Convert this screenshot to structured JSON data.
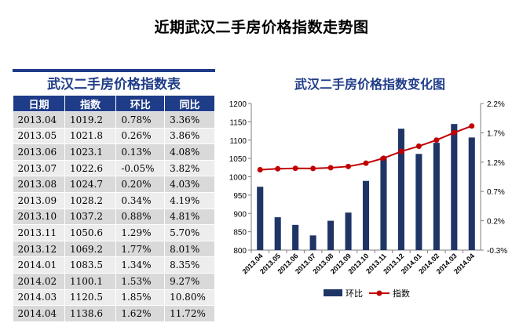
{
  "page": {
    "title": "近期武汉二手房价格指数走势图",
    "table_title": "武汉二手房价格指数表",
    "chart_title": "武汉二手房价格指数变化图"
  },
  "table": {
    "headers": [
      "日期",
      "指数",
      "环比",
      "同比"
    ],
    "rows": [
      [
        "2013.04",
        "1019.2",
        "0.78%",
        "3.36%"
      ],
      [
        "2013.05",
        "1021.8",
        "0.26%",
        "3.86%"
      ],
      [
        "2013.06",
        "1023.1",
        "0.13%",
        "4.08%"
      ],
      [
        "2013.07",
        "1022.6",
        "-0.05%",
        "3.82%"
      ],
      [
        "2013.08",
        "1024.7",
        "0.20%",
        "4.03%"
      ],
      [
        "2013.09",
        "1028.2",
        "0.34%",
        "4.19%"
      ],
      [
        "2013.10",
        "1037.2",
        "0.88%",
        "4.81%"
      ],
      [
        "2013.11",
        "1050.6",
        "1.29%",
        "5.70%"
      ],
      [
        "2013.12",
        "1069.2",
        "1.77%",
        "8.01%"
      ],
      [
        "2014.01",
        "1083.5",
        "1.34%",
        "8.35%"
      ],
      [
        "2014.02",
        "1100.1",
        "1.53%",
        "9.27%"
      ],
      [
        "2014.03",
        "1120.5",
        "1.85%",
        "10.80%"
      ],
      [
        "2014.04",
        "1138.6",
        "1.62%",
        "11.72%"
      ]
    ]
  },
  "chart_data": {
    "type": "bar+line",
    "categories": [
      "2013.04",
      "2013.05",
      "2013.06",
      "2013.07",
      "2013.08",
      "2013.09",
      "2013.10",
      "2013.11",
      "2013.12",
      "2014.01",
      "2014.02",
      "2014.03",
      "2014.04"
    ],
    "series": [
      {
        "name": "环比",
        "type": "bar",
        "axis": "right",
        "values": [
          0.78,
          0.26,
          0.13,
          -0.05,
          0.2,
          0.34,
          0.88,
          1.29,
          1.77,
          1.34,
          1.53,
          1.85,
          1.62
        ],
        "color": "#1F3566"
      },
      {
        "name": "指数",
        "type": "line",
        "axis": "left",
        "values": [
          1019.2,
          1021.8,
          1023.1,
          1022.6,
          1024.7,
          1028.2,
          1037.2,
          1050.6,
          1069.2,
          1083.5,
          1100.1,
          1120.5,
          1138.6
        ],
        "color": "#C00000"
      }
    ],
    "y_left": {
      "min": 800,
      "max": 1200,
      "ticks": [
        "800",
        "850",
        "900",
        "950",
        "1000",
        "1050",
        "1100",
        "1150",
        "1200"
      ]
    },
    "y_right": {
      "min": -0.3,
      "max": 2.2,
      "ticks": [
        "-0.3%",
        "0.2%",
        "0.7%",
        "1.2%",
        "1.7%",
        "2.2%"
      ]
    },
    "legend": "bottom",
    "grid": false
  },
  "colors": {
    "header_bg": "#1F3C88",
    "title_blue": "#1F3C88",
    "bar": "#1F3566",
    "line": "#C00000"
  }
}
